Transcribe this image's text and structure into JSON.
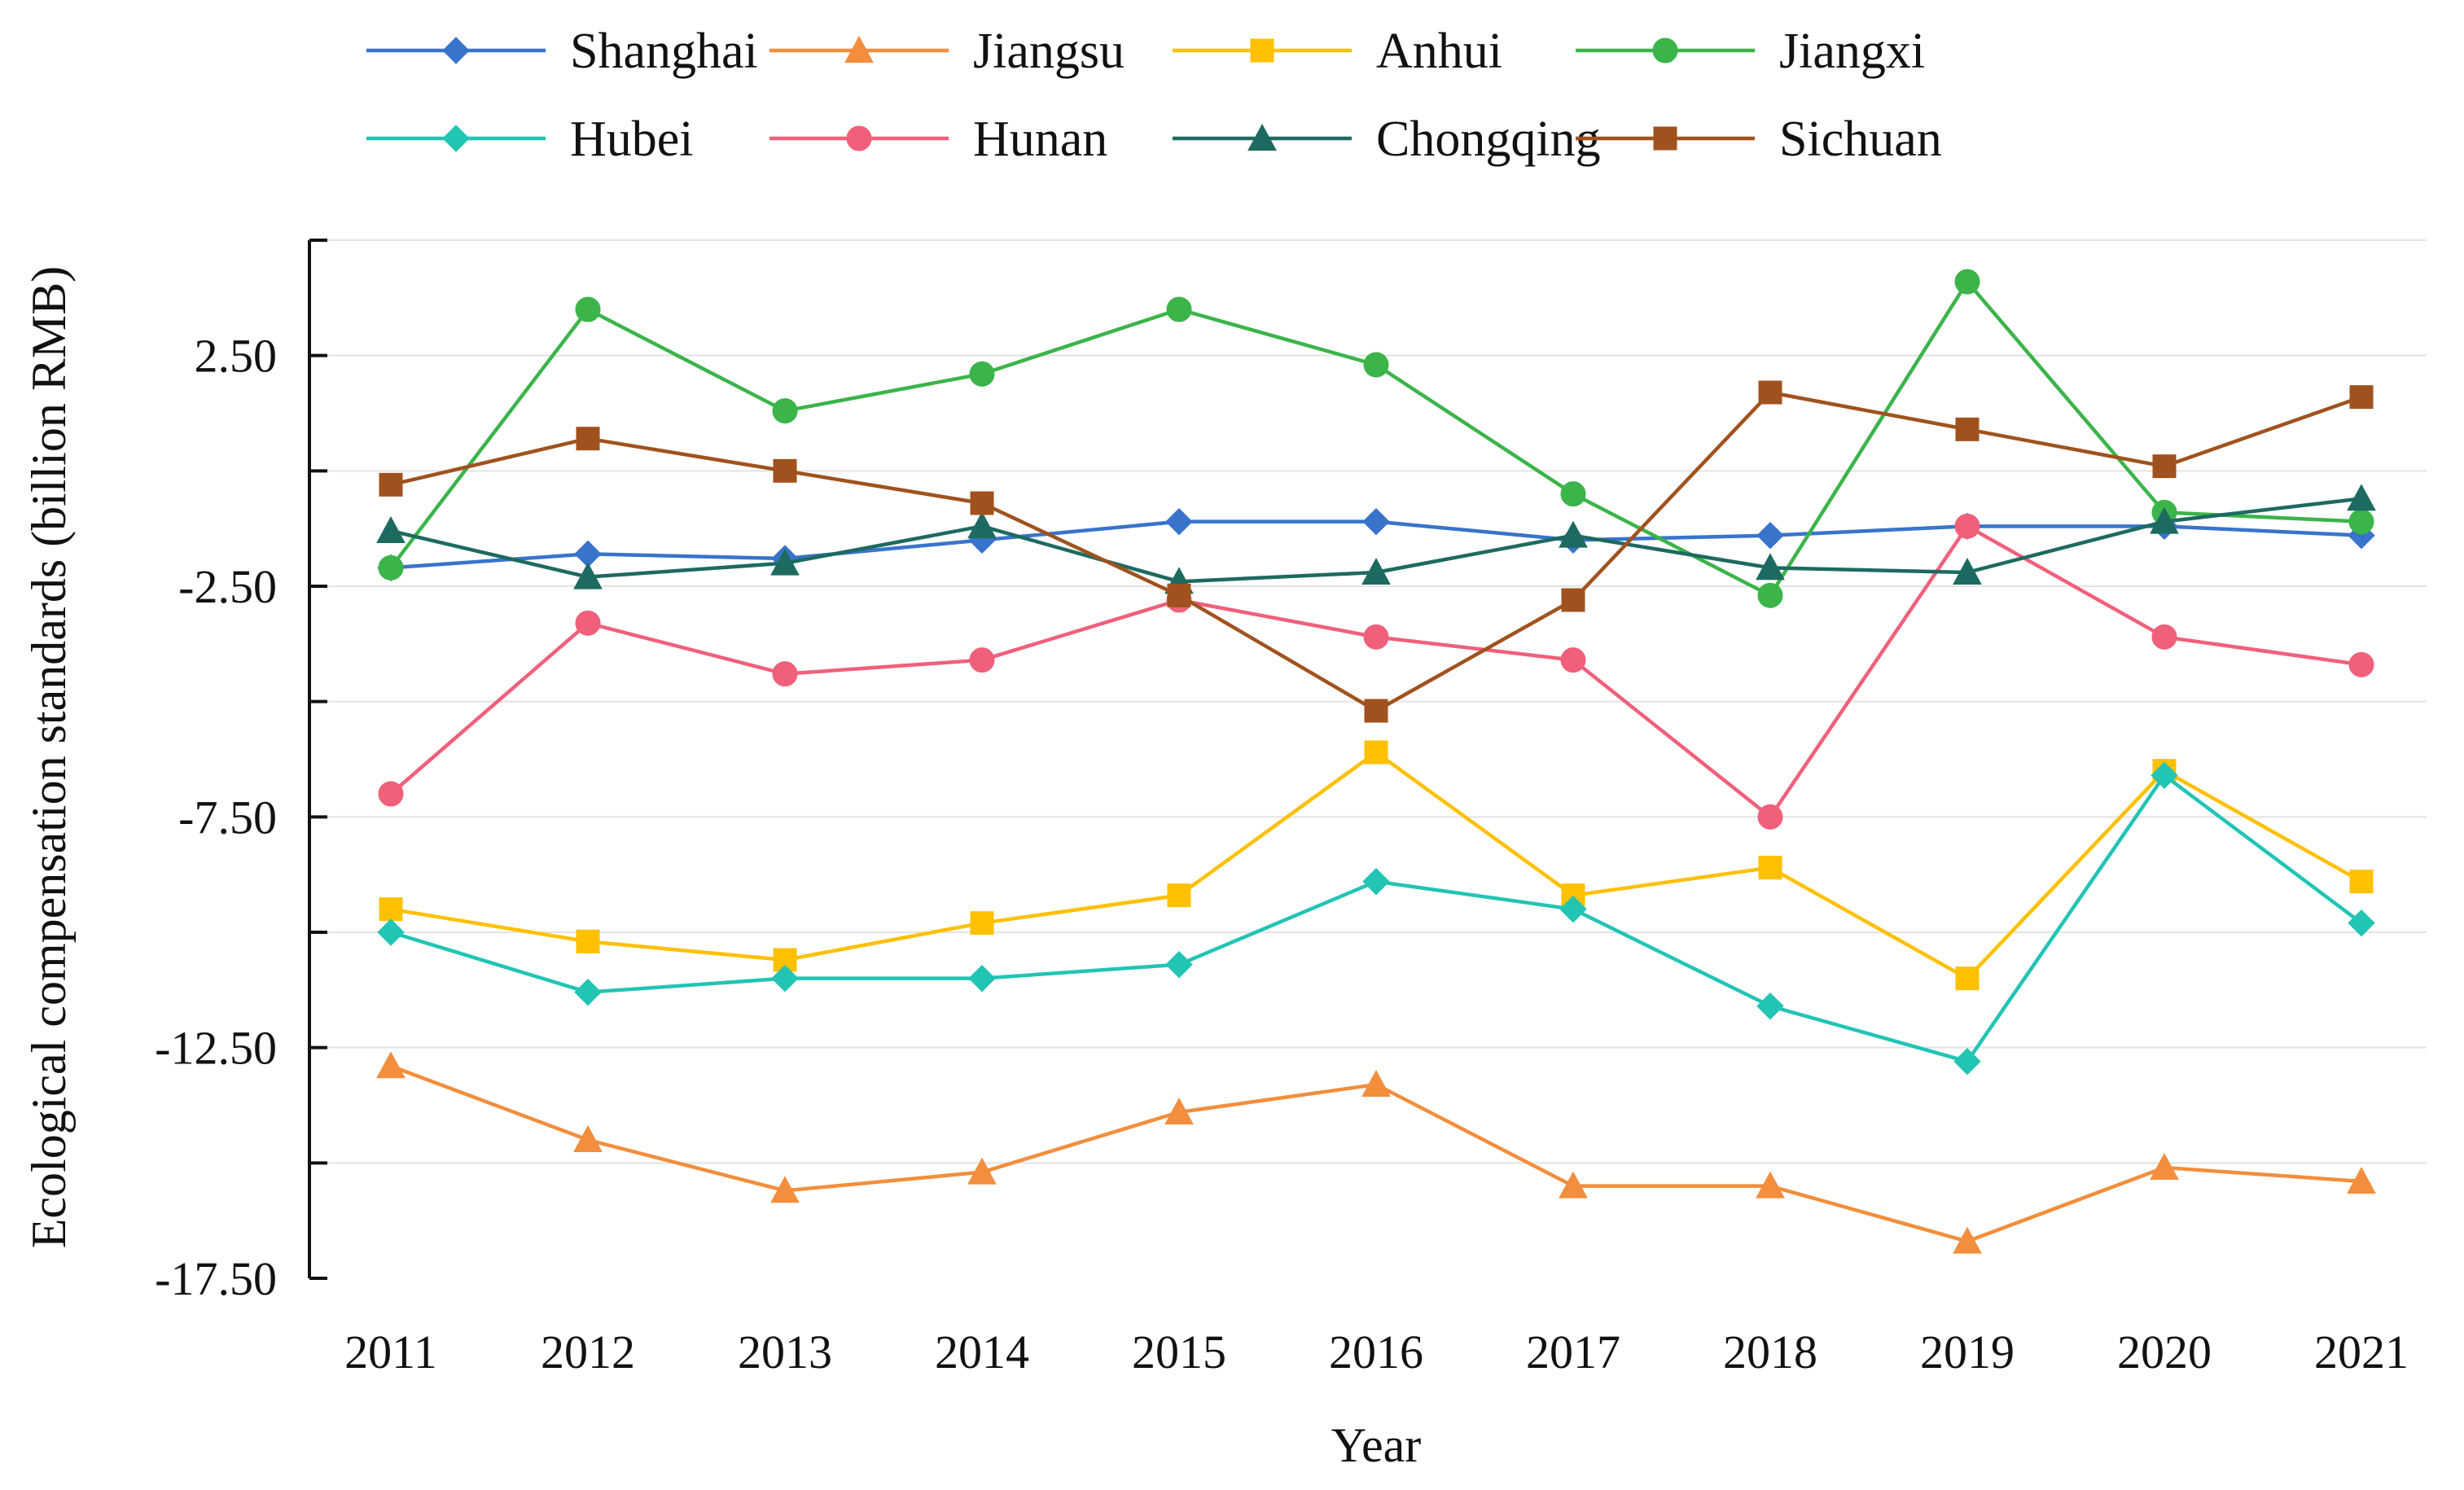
{
  "chart_data": {
    "type": "line",
    "title": "",
    "xlabel": "Year",
    "ylabel": "Ecological compensation standards (billion RMB)",
    "categories": [
      "2011",
      "2012",
      "2013",
      "2014",
      "2015",
      "2016",
      "2017",
      "2018",
      "2019",
      "2020",
      "2021"
    ],
    "ylim": [
      -17.5,
      5.0
    ],
    "yticks": [
      2.5,
      -2.5,
      -7.5,
      -12.5,
      -17.5
    ],
    "ytick_labels": [
      "2.50",
      "-2.50",
      "-7.50",
      "-12.50",
      "-17.50"
    ],
    "grid": "horizontal",
    "legend_position": "top",
    "series": [
      {
        "name": "Shanghai",
        "color": "#3874CB",
        "marker": "diamond",
        "values": [
          -2.1,
          -1.8,
          -1.9,
          -1.5,
          -1.1,
          -1.1,
          -1.5,
          -1.4,
          -1.2,
          -1.2,
          -1.4
        ]
      },
      {
        "name": "Jiangsu",
        "color": "#F28E3C",
        "marker": "triangle",
        "values": [
          -12.9,
          -14.5,
          -15.6,
          -15.2,
          -13.9,
          -13.3,
          -15.5,
          -15.5,
          -16.7,
          -15.1,
          -15.4
        ]
      },
      {
        "name": "Anhui",
        "color": "#FFC000",
        "marker": "square",
        "values": [
          -9.5,
          -10.2,
          -10.6,
          -9.8,
          -9.2,
          -6.1,
          -9.2,
          -8.6,
          -11.0,
          -6.5,
          -8.9
        ]
      },
      {
        "name": "Jiangxi",
        "color": "#3BB44A",
        "marker": "circle",
        "values": [
          -2.1,
          3.5,
          1.3,
          2.1,
          3.5,
          2.3,
          -0.5,
          -2.7,
          4.1,
          -0.9,
          -1.1
        ]
      },
      {
        "name": "Hubei",
        "color": "#22C4B4",
        "marker": "diamond",
        "values": [
          -10.0,
          -11.3,
          -11.0,
          -11.0,
          -10.7,
          -8.9,
          -9.5,
          -11.6,
          -12.8,
          -6.6,
          -9.8
        ]
      },
      {
        "name": "Hunan",
        "color": "#F0607A",
        "marker": "circle",
        "values": [
          -7.0,
          -3.3,
          -4.4,
          -4.1,
          -2.8,
          -3.6,
          -4.1,
          -7.5,
          -1.2,
          -3.6,
          -4.2
        ]
      },
      {
        "name": "Chongqing",
        "color": "#1D6A60",
        "marker": "triangle",
        "values": [
          -1.3,
          -2.3,
          -2.0,
          -1.2,
          -2.4,
          -2.2,
          -1.4,
          -2.1,
          -2.2,
          -1.1,
          -0.6
        ]
      },
      {
        "name": "Sichuan",
        "color": "#A0521E",
        "marker": "square",
        "values": [
          -0.3,
          0.7,
          0.0,
          -0.7,
          -2.7,
          -5.2,
          -2.8,
          1.7,
          0.9,
          0.1,
          1.6
        ]
      }
    ]
  }
}
